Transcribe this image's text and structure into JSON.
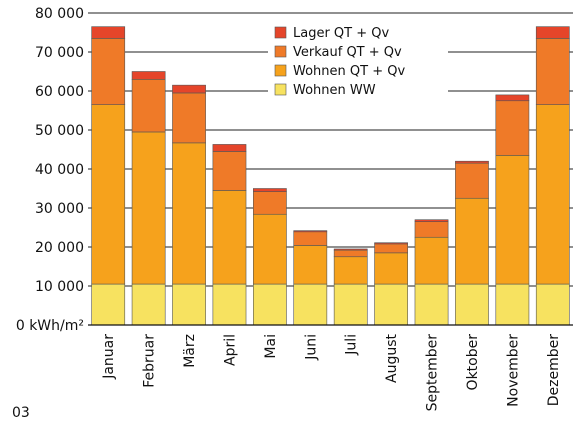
{
  "figure_number": "03",
  "chart_data": {
    "type": "bar",
    "stacked": true,
    "categories": [
      "Januar",
      "Februar",
      "März",
      "April",
      "Mai",
      "Juni",
      "Juli",
      "August",
      "September",
      "Oktober",
      "November",
      "Dezember"
    ],
    "yticks": [
      "0 kWh/m²",
      "10 000",
      "20 000",
      "30 000",
      "40 000",
      "50 000",
      "60 000",
      "70 000",
      "80 000"
    ],
    "ylim": [
      0,
      80000
    ],
    "grid": true,
    "legend_position": "top-right",
    "series": [
      {
        "name": "Wohnen WW",
        "color": "#f7e260",
        "values": [
          10500,
          10500,
          10500,
          10500,
          10500,
          10500,
          10500,
          10500,
          10500,
          10500,
          10500,
          10500
        ]
      },
      {
        "name": "Wohnen QT + Qv",
        "color": "#f6a21c",
        "values": [
          46000,
          39000,
          36200,
          24000,
          17900,
          9900,
          7000,
          8000,
          12000,
          22000,
          33000,
          46000
        ]
      },
      {
        "name": "Verkauf QT + Qv",
        "color": "#ef7a28",
        "values": [
          17000,
          13500,
          12800,
          10000,
          5800,
          3500,
          1700,
          2300,
          4000,
          9000,
          14000,
          17000
        ]
      },
      {
        "name": "Lager QT + Qv",
        "color": "#e5452a",
        "values": [
          3000,
          2000,
          2000,
          1800,
          800,
          300,
          300,
          300,
          500,
          500,
          1500,
          3000
        ]
      }
    ]
  }
}
